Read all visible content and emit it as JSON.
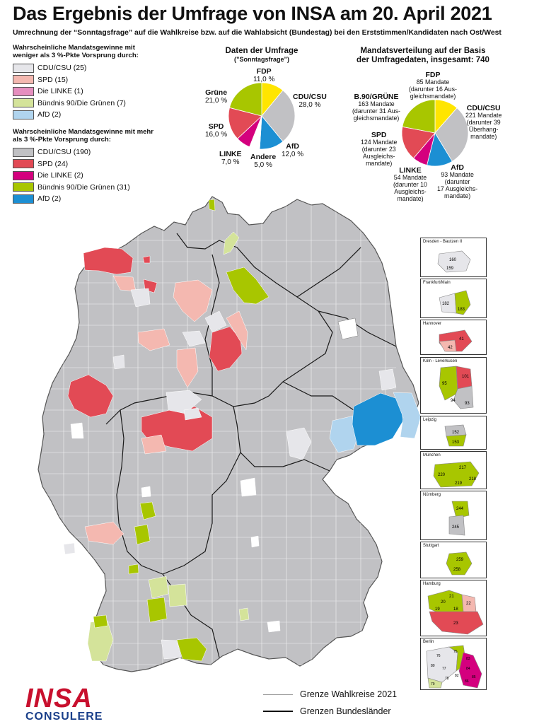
{
  "title": "Das Ergebnis der Umfrage von INSA am 20. April 2021",
  "subtitle": "Umrechnung der “Sonntagsfrage” auf die Wahlkreise bzw. auf die Wahlabsicht (Bundestag) bei den Erststimmen/Kandidaten nach Ost/West",
  "legend_weak": {
    "heading": "Wahrscheinliche Mandatsgewinne mit weniger als 3 %-Pkte Vorsprung durch:",
    "items": [
      {
        "label": "CDU/CSU (25)",
        "color": "#e6e6ea"
      },
      {
        "label": "SPD (15)",
        "color": "#f4b8b0"
      },
      {
        "label": "Die LINKE (1)",
        "color": "#e68fbf"
      },
      {
        "label": "Bündnis 90/Die Grünen (7)",
        "color": "#d4e39a"
      },
      {
        "label": "AfD (2)",
        "color": "#b0d4ee"
      }
    ]
  },
  "legend_strong": {
    "heading": "Wahrscheinliche Mandatsgewinne mit mehr als 3 %-Pkte Vorsprung durch:",
    "items": [
      {
        "label": "CDU/CSU (190)",
        "color": "#c1c1c4"
      },
      {
        "label": "SPD (24)",
        "color": "#e24a55"
      },
      {
        "label": "Die LINKE (2)",
        "color": "#d4007e"
      },
      {
        "label": "Bündnis 90/Die Grünen (31)",
        "color": "#a8c600"
      },
      {
        "label": "AfD (2)",
        "color": "#1c8fd3"
      }
    ]
  },
  "survey": {
    "title": "Daten der Umfrage",
    "sub": "(”Sonntagsfrage”)",
    "slices": [
      {
        "party": "FDP",
        "value_text": "11,0 %",
        "value": 11.0,
        "color": "#ffe500"
      },
      {
        "party": "CDU/CSU",
        "value_text": "28,0 %",
        "value": 28.0,
        "color": "#c1c1c4"
      },
      {
        "party": "AfD",
        "value_text": "12,0 %",
        "value": 12.0,
        "color": "#1c8fd3"
      },
      {
        "party": "Andere",
        "value_text": "5,0 %",
        "value": 5.0,
        "color": "#ffffff"
      },
      {
        "party": "LINKE",
        "value_text": "7,0 %",
        "value": 7.0,
        "color": "#d4007e"
      },
      {
        "party": "SPD",
        "value_text": "16,0 %",
        "value": 16.0,
        "color": "#e24a55"
      },
      {
        "party": "Grüne",
        "value_text": "21,0 %",
        "value": 21.0,
        "color": "#a8c600"
      }
    ]
  },
  "seats": {
    "title_line1": "Mandatsverteilung auf der Basis",
    "title_line2": "der Umfragedaten, insgesamt: 740",
    "slices": [
      {
        "party": "FDP",
        "seats": 85,
        "line1": "85 Mandate",
        "line2": "(darunter 16 Aus-",
        "line3": "gleichsmandate)",
        "color": "#ffe500"
      },
      {
        "party": "CDU/CSU",
        "seats": 221,
        "line1": "221 Mandate",
        "line2": "(darunter 39",
        "line3": "Überhang-",
        "line4": "mandate)",
        "color": "#c1c1c4"
      },
      {
        "party": "AfD",
        "seats": 93,
        "line1": "93 Mandate",
        "line2": "(darunter",
        "line3": "17 Ausgleichs-",
        "line4": "mandate)",
        "color": "#1c8fd3"
      },
      {
        "party": "LINKE",
        "seats": 54,
        "line1": "54 Mandate",
        "line2": "(darunter 10",
        "line3": "Ausgleichs-",
        "line4": "mandate)",
        "color": "#d4007e"
      },
      {
        "party": "SPD",
        "seats": 124,
        "line1": "124 Mandate",
        "line2": "(darunter 23",
        "line3": "Ausgleichs-",
        "line4": "mandate)",
        "color": "#e24a55"
      },
      {
        "party": "B.90/GRÜNE",
        "seats": 163,
        "line1": "163 Mandate",
        "line2": "(darunter 31 Aus-",
        "line3": "gleichsmandate)",
        "color": "#a8c600"
      }
    ]
  },
  "insets": [
    {
      "label": "Dresden - Bautzen II",
      "numbers": [
        "160",
        "159"
      ]
    },
    {
      "label": "Frankfurt/Main",
      "numbers": [
        "182",
        "183"
      ]
    },
    {
      "label": "Hannover",
      "numbers": [
        "41",
        "42"
      ]
    },
    {
      "label": "Köln - Leverkusen",
      "numbers": [
        "101",
        "95",
        "94",
        "93"
      ]
    },
    {
      "label": "Leipzig",
      "numbers": [
        "152",
        "153"
      ]
    },
    {
      "label": "München",
      "numbers": [
        "217",
        "220",
        "218",
        "219"
      ]
    },
    {
      "label": "Nürnberg",
      "numbers": [
        "244",
        "245"
      ]
    },
    {
      "label": "Stuttgart",
      "numbers": [
        "259",
        "258"
      ]
    },
    {
      "label": "Hamburg",
      "numbers": [
        "21",
        "20",
        "22",
        "19",
        "18",
        "23"
      ]
    },
    {
      "label": "Berlin",
      "numbers": [
        "79",
        "76",
        "75",
        "80",
        "77",
        "83",
        "84",
        "85",
        "86",
        "82",
        "78"
      ]
    }
  ],
  "map_legend": {
    "districts": "Grenze Wahlkreise 2021",
    "states": "Grenzen Bundesländer"
  },
  "logo": {
    "main": "INSA",
    "sub": "CONSULERE"
  }
}
